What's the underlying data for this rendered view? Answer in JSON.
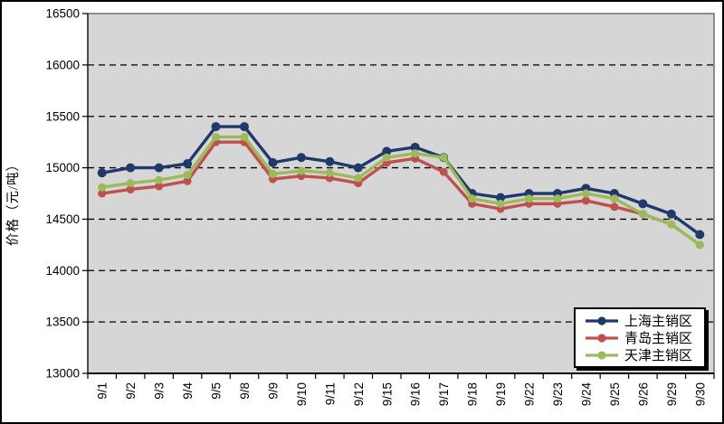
{
  "figure": {
    "background": "#FFFFFF",
    "border_color": "#000000",
    "plot_background": "#D6D6D6",
    "gridline_color": "#000000"
  },
  "chart_data": {
    "type": "line",
    "title": "",
    "ylabel": "价格（元/吨）",
    "xlabel": "",
    "ylim": [
      13000,
      16500
    ],
    "ytick_step": 500,
    "grid": "horizontal-dashed",
    "legend_position": "bottom-right",
    "categories": [
      "9/1",
      "9/2",
      "9/3",
      "9/4",
      "9/5",
      "9/8",
      "9/9",
      "9/10",
      "9/11",
      "9/12",
      "9/15",
      "9/16",
      "9/17",
      "9/18",
      "9/19",
      "9/22",
      "9/23",
      "9/24",
      "9/25",
      "9/26",
      "9/29",
      "9/30"
    ],
    "series": [
      {
        "name": "上海主销区",
        "color": "#1F3A6A",
        "values": [
          14950,
          15000,
          15000,
          15040,
          15400,
          15400,
          15050,
          15100,
          15060,
          15000,
          15160,
          15200,
          15100,
          14750,
          14710,
          14750,
          14750,
          14800,
          14750,
          14650,
          14550,
          14350
        ]
      },
      {
        "name": "青岛主销区",
        "color": "#C0504D",
        "values": [
          14750,
          14790,
          14820,
          14870,
          15250,
          15250,
          14890,
          14920,
          14900,
          14850,
          15050,
          15090,
          14960,
          14650,
          14600,
          14650,
          14650,
          14680,
          14620,
          14550,
          14450,
          14250
        ]
      },
      {
        "name": "天津主销区",
        "color": "#9BBB59",
        "values": [
          14810,
          14850,
          14880,
          14930,
          15300,
          15300,
          14940,
          14970,
          14950,
          14900,
          15100,
          15140,
          15100,
          14700,
          14650,
          14700,
          14700,
          14750,
          14700,
          14550,
          14450,
          14250
        ]
      }
    ]
  }
}
